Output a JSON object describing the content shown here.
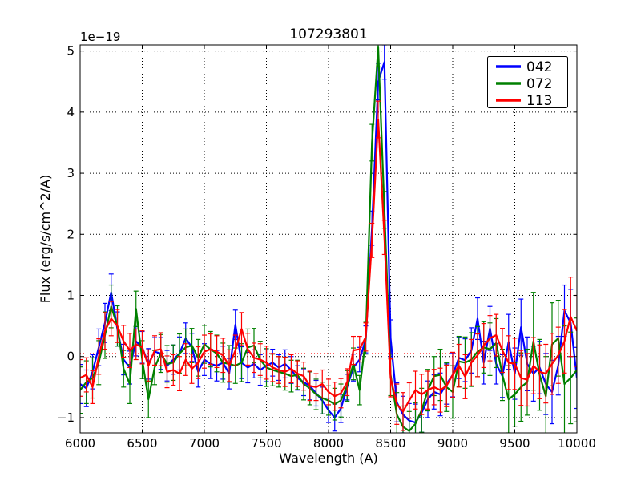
{
  "chart_data": {
    "type": "line",
    "title": "107293801",
    "xlabel": "Wavelength (A)",
    "ylabel": "Flux (erg/s/cm^2/A)",
    "y_offset_label": "1e−19",
    "xlim": [
      6000,
      10000
    ],
    "ylim": [
      -1.25,
      5.1
    ],
    "xticks": [
      6000,
      6500,
      7000,
      7500,
      8000,
      8500,
      9000,
      9500,
      10000
    ],
    "xtick_labels": [
      "6000",
      "6500",
      "7000",
      "7500",
      "8000",
      "8500",
      "9000",
      "9500",
      "10000"
    ],
    "yticks": [
      -1,
      0,
      1,
      2,
      3,
      4,
      5
    ],
    "ytick_labels": [
      "−1",
      "0",
      "1",
      "2",
      "3",
      "4",
      "5"
    ],
    "grid": true,
    "grid_style": "dotted",
    "legend": {
      "position": "upper right",
      "labels": [
        "042",
        "072",
        "113"
      ]
    },
    "reference_line": {
      "y": 0.05,
      "color": "#ff0000",
      "style": "dotted"
    },
    "x": [
      6000,
      6050,
      6100,
      6150,
      6200,
      6250,
      6300,
      6350,
      6400,
      6450,
      6500,
      6550,
      6600,
      6650,
      6700,
      6750,
      6800,
      6850,
      6900,
      6950,
      7000,
      7050,
      7100,
      7150,
      7200,
      7250,
      7300,
      7350,
      7400,
      7450,
      7500,
      7550,
      7600,
      7650,
      7700,
      7750,
      7800,
      7850,
      7900,
      7950,
      8000,
      8050,
      8100,
      8150,
      8200,
      8250,
      8300,
      8350,
      8400,
      8450,
      8500,
      8550,
      8600,
      8650,
      8700,
      8750,
      8800,
      8850,
      8900,
      8950,
      9000,
      9050,
      9100,
      9150,
      9200,
      9250,
      9300,
      9350,
      9400,
      9450,
      9500,
      9550,
      9600,
      9650,
      9700,
      9750,
      9800,
      9850,
      9900,
      9950,
      10000
    ],
    "series": [
      {
        "name": "042",
        "color": "#0000ff",
        "values": [
          -0.45,
          -0.52,
          -0.25,
          0.15,
          0.55,
          1.05,
          0.45,
          -0.05,
          -0.18,
          0.25,
          0.15,
          -0.12,
          0.08,
          0.05,
          -0.15,
          -0.05,
          0.05,
          0.3,
          0.15,
          -0.25,
          -0.05,
          -0.12,
          -0.15,
          -0.1,
          -0.28,
          0.52,
          -0.1,
          -0.18,
          -0.12,
          -0.22,
          -0.15,
          -0.1,
          -0.18,
          -0.12,
          -0.22,
          -0.35,
          -0.42,
          -0.48,
          -0.6,
          -0.72,
          -0.88,
          -1.0,
          -0.85,
          -0.5,
          -0.18,
          -0.05,
          0.28,
          2.1,
          4.5,
          4.82,
          0.3,
          -0.75,
          -0.95,
          -1.05,
          -1.08,
          -0.92,
          -0.7,
          -0.58,
          -0.62,
          -0.45,
          -0.3,
          -0.02,
          -0.06,
          0.1,
          0.62,
          -0.1,
          0.46,
          -0.12,
          -0.32,
          0.24,
          -0.28,
          0.48,
          -0.12,
          -0.28,
          -0.18,
          -0.45,
          -0.58,
          -0.15,
          0.75,
          0.55,
          -0.35
        ],
        "errors": [
          0.32,
          0.3,
          0.28,
          0.3,
          0.32,
          0.3,
          0.28,
          0.25,
          0.27,
          0.24,
          0.26,
          0.25,
          0.23,
          0.26,
          0.25,
          0.24,
          0.27,
          0.25,
          0.23,
          0.25,
          0.26,
          0.24,
          0.25,
          0.27,
          0.25,
          0.24,
          0.26,
          0.25,
          0.23,
          0.25,
          0.26,
          0.22,
          0.21,
          0.23,
          0.22,
          0.2,
          0.22,
          0.23,
          0.21,
          0.22,
          0.2,
          0.22,
          0.23,
          0.21,
          0.22,
          0.2,
          0.22,
          0.28,
          0.3,
          0.28,
          0.3,
          0.32,
          0.3,
          0.28,
          0.3,
          0.32,
          0.3,
          0.28,
          0.35,
          0.33,
          0.36,
          0.34,
          0.35,
          0.37,
          0.34,
          0.35,
          0.36,
          0.33,
          0.35,
          0.45,
          0.42,
          0.46,
          0.44,
          0.45,
          0.43,
          0.5,
          0.52,
          0.48,
          0.42,
          0.55,
          0.5
        ]
      },
      {
        "name": "072",
        "color": "#008000",
        "values": [
          -0.55,
          -0.42,
          -0.35,
          -0.1,
          0.35,
          0.82,
          0.5,
          -0.2,
          -0.45,
          0.78,
          -0.05,
          -0.7,
          -0.18,
          0.05,
          -0.12,
          -0.1,
          0.05,
          0.15,
          0.18,
          -0.02,
          0.2,
          0.12,
          0.05,
          -0.1,
          -0.12,
          -0.15,
          -0.1,
          0.15,
          0.18,
          -0.05,
          -0.18,
          -0.22,
          -0.25,
          -0.28,
          -0.32,
          -0.3,
          -0.45,
          -0.52,
          -0.62,
          -0.68,
          -0.72,
          -0.78,
          -0.72,
          -0.48,
          -0.12,
          -0.55,
          0.3,
          3.5,
          5.06,
          2.4,
          -0.3,
          -0.95,
          -1.15,
          -1.22,
          -1.1,
          -0.88,
          -0.55,
          -0.32,
          -0.3,
          -0.5,
          -0.58,
          -0.08,
          -0.1,
          -0.05,
          0.08,
          0.15,
          0.12,
          0.22,
          -0.3,
          -0.7,
          -0.62,
          -0.5,
          -0.42,
          0.25,
          -0.3,
          -0.65,
          0.2,
          0.3,
          -0.45,
          -0.35,
          -0.22
        ],
        "errors": [
          0.38,
          0.35,
          0.33,
          0.36,
          0.38,
          0.35,
          0.33,
          0.3,
          0.32,
          0.29,
          0.31,
          0.3,
          0.28,
          0.31,
          0.3,
          0.29,
          0.32,
          0.3,
          0.28,
          0.3,
          0.31,
          0.29,
          0.3,
          0.32,
          0.3,
          0.29,
          0.31,
          0.3,
          0.28,
          0.3,
          0.31,
          0.26,
          0.25,
          0.27,
          0.26,
          0.24,
          0.26,
          0.27,
          0.25,
          0.26,
          0.24,
          0.26,
          0.27,
          0.25,
          0.26,
          0.24,
          0.26,
          0.3,
          0.32,
          0.3,
          0.34,
          0.36,
          0.34,
          0.32,
          0.34,
          0.36,
          0.34,
          0.32,
          0.42,
          0.4,
          0.43,
          0.41,
          0.42,
          0.44,
          0.41,
          0.42,
          0.43,
          0.4,
          0.42,
          0.55,
          0.52,
          0.56,
          0.54,
          0.8,
          0.58,
          0.65,
          0.68,
          0.62,
          0.95,
          0.75,
          0.85
        ]
      },
      {
        "name": "113",
        "color": "#ff0000",
        "values": [
          -0.35,
          -0.3,
          -0.5,
          0.0,
          0.42,
          0.62,
          0.5,
          0.25,
          0.1,
          0.2,
          0.15,
          -0.15,
          0.1,
          0.12,
          -0.25,
          -0.22,
          -0.28,
          -0.05,
          -0.2,
          -0.1,
          0.08,
          0.12,
          0.08,
          0.02,
          -0.15,
          0.1,
          0.45,
          0.12,
          -0.02,
          -0.05,
          -0.1,
          -0.18,
          -0.22,
          -0.25,
          -0.2,
          -0.28,
          -0.32,
          -0.48,
          -0.5,
          -0.45,
          -0.58,
          -0.65,
          -0.6,
          -0.42,
          0.1,
          0.12,
          0.32,
          1.9,
          3.88,
          1.95,
          -0.35,
          -0.78,
          -0.9,
          -0.72,
          -0.55,
          -0.62,
          -0.55,
          -0.5,
          -0.55,
          -0.48,
          -0.3,
          -0.15,
          -0.33,
          -0.1,
          0.02,
          0.18,
          0.3,
          0.35,
          0.1,
          -0.1,
          -0.12,
          -0.35,
          -0.38,
          -0.15,
          -0.25,
          -0.28,
          -0.12,
          0.02,
          0.25,
          0.65,
          0.42
        ],
        "errors": [
          0.3,
          0.28,
          0.27,
          0.29,
          0.3,
          0.28,
          0.27,
          0.26,
          0.28,
          0.25,
          0.27,
          0.26,
          0.24,
          0.27,
          0.26,
          0.25,
          0.28,
          0.26,
          0.24,
          0.26,
          0.27,
          0.25,
          0.26,
          0.28,
          0.26,
          0.25,
          0.27,
          0.26,
          0.24,
          0.26,
          0.27,
          0.23,
          0.22,
          0.24,
          0.23,
          0.21,
          0.23,
          0.24,
          0.22,
          0.23,
          0.21,
          0.23,
          0.24,
          0.22,
          0.23,
          0.21,
          0.23,
          0.28,
          0.3,
          0.28,
          0.31,
          0.33,
          0.31,
          0.29,
          0.31,
          0.33,
          0.31,
          0.29,
          0.36,
          0.34,
          0.37,
          0.35,
          0.36,
          0.38,
          0.35,
          0.36,
          0.37,
          0.34,
          0.36,
          0.44,
          0.42,
          0.45,
          0.43,
          0.46,
          0.44,
          0.48,
          0.5,
          0.46,
          0.52,
          0.65,
          0.58
        ]
      }
    ]
  }
}
